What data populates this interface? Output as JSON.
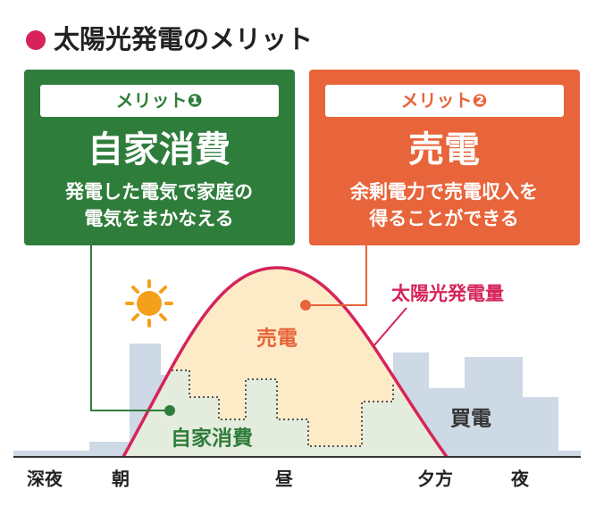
{
  "header": {
    "title": "太陽光発電のメリット"
  },
  "cards": [
    {
      "badge": "メリット❶",
      "title": "自家消費",
      "lines": [
        "発電した電気で家庭の",
        "電気をまかなえる"
      ]
    },
    {
      "badge": "メリット❷",
      "title": "売電",
      "lines": [
        "余剰電力で売電収入を",
        "得ることができる"
      ]
    }
  ],
  "diagram": {
    "curve_label": "太陽光発電量",
    "sell_label": "売電",
    "self_label": "自家消費",
    "buy_label": "買電",
    "time_axis": [
      "深夜",
      "朝",
      "昼",
      "夕方",
      "夜"
    ]
  }
}
